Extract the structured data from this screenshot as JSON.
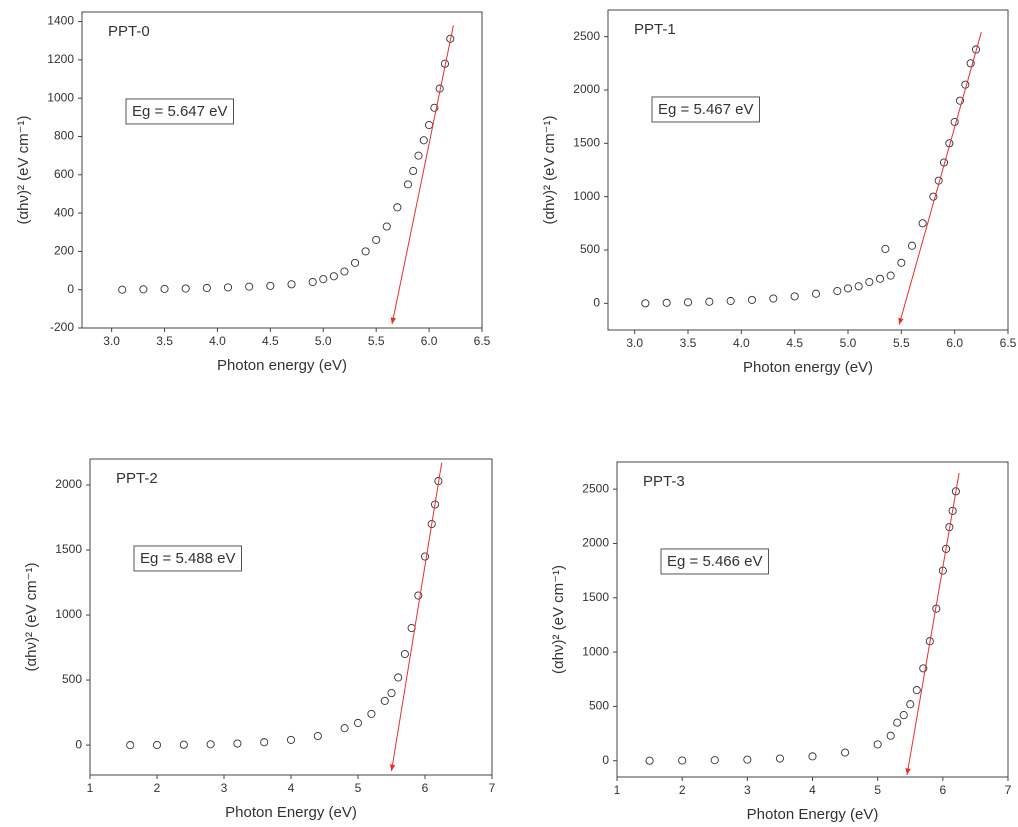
{
  "chart_data": [
    {
      "type": "scatter",
      "label": "PPT-0",
      "annotation": "Eg = 5.647 eV",
      "xlabel": "Photon energy (eV)",
      "ylabel": "(αhν)² (eV cm⁻¹)",
      "xlim": [
        2.72,
        6.5
      ],
      "ylim": [
        -200,
        1450
      ],
      "xticks": [
        {
          "value": 3,
          "label": "3.0"
        },
        3.5,
        {
          "value": 4,
          "label": "4.0"
        },
        4.5,
        {
          "value": 5,
          "label": "5.0"
        },
        5.5,
        {
          "value": 6,
          "label": "6.0"
        },
        6.5
      ],
      "yticks": [
        -200,
        0,
        200,
        400,
        600,
        800,
        1000,
        1200,
        1400
      ],
      "x": [
        3.1,
        3.3,
        3.5,
        3.7,
        3.9,
        4.1,
        4.3,
        4.5,
        4.7,
        4.9,
        5.0,
        5.1,
        5.2,
        5.3,
        5.4,
        5.5,
        5.6,
        5.7,
        5.8,
        5.85,
        5.9,
        5.95,
        6.0,
        6.05,
        6.1,
        6.15,
        6.2
      ],
      "values": [
        0,
        2,
        4,
        6,
        9,
        12,
        16,
        20,
        28,
        40,
        55,
        70,
        95,
        140,
        200,
        260,
        330,
        430,
        550,
        620,
        700,
        780,
        860,
        950,
        1050,
        1180,
        1310
      ],
      "color": "#333333",
      "fit": {
        "x": [
          5.65,
          6.23
        ],
        "y": [
          -180,
          1381
        ],
        "color": "#e8302a"
      }
    },
    {
      "type": "scatter",
      "label": "PPT-1",
      "annotation": "Eg = 5.467 eV",
      "xlabel": "Photon energy (eV)",
      "ylabel": "(αhν)² (eV cm⁻¹)",
      "xlim": [
        2.75,
        6.5
      ],
      "ylim": [
        -250,
        2750
      ],
      "xticks": [
        {
          "value": 3,
          "label": "3.0"
        },
        3.5,
        {
          "value": 4,
          "label": "4.0"
        },
        4.5,
        {
          "value": 5,
          "label": "5.0"
        },
        5.5,
        {
          "value": 6,
          "label": "6.0"
        },
        6.5
      ],
      "yticks": [
        0,
        500,
        1000,
        1500,
        2000,
        2500
      ],
      "x": [
        3.1,
        3.3,
        3.5,
        3.7,
        3.9,
        4.1,
        4.3,
        4.5,
        4.7,
        4.9,
        5.0,
        5.1,
        5.2,
        5.3,
        5.35,
        5.4,
        5.5,
        5.6,
        5.7,
        5.8,
        5.85,
        5.9,
        5.95,
        6.0,
        6.05,
        6.1,
        6.15,
        6.2
      ],
      "values": [
        0,
        5,
        10,
        15,
        22,
        32,
        45,
        65,
        90,
        115,
        140,
        160,
        200,
        230,
        510,
        260,
        380,
        540,
        750,
        1000,
        1150,
        1320,
        1500,
        1700,
        1900,
        2050,
        2250,
        2380
      ],
      "color": "#333333",
      "fit": {
        "x": [
          5.48,
          6.25
        ],
        "y": [
          -200,
          2542
        ],
        "color": "#e8302a"
      }
    },
    {
      "type": "scatter",
      "label": "PPT-2",
      "annotation": "Eg = 5.488 eV",
      "xlabel": "Photon Energy (eV)",
      "ylabel": "(αhν)² (eV cm⁻¹)",
      "xlim": [
        1,
        7
      ],
      "ylim": [
        -230,
        2200
      ],
      "xticks": [
        1,
        2,
        3,
        4,
        5,
        6,
        7
      ],
      "yticks": [
        0,
        500,
        1000,
        1500,
        2000
      ],
      "x": [
        1.6,
        2.0,
        2.4,
        2.8,
        3.2,
        3.6,
        4.0,
        4.4,
        4.8,
        5.0,
        5.2,
        5.4,
        5.5,
        5.6,
        5.7,
        5.8,
        5.9,
        6.0,
        6.1,
        6.15,
        6.2
      ],
      "values": [
        0,
        1,
        3,
        6,
        12,
        22,
        40,
        70,
        130,
        170,
        240,
        340,
        400,
        520,
        700,
        900,
        1150,
        1450,
        1700,
        1850,
        2030
      ],
      "color": "#333333",
      "fit": {
        "x": [
          5.5,
          6.25
        ],
        "y": [
          -200,
          2172
        ],
        "color": "#e8302a"
      }
    },
    {
      "type": "scatter",
      "label": "PPT-3",
      "annotation": "Eg = 5.466 eV",
      "xlabel": "Photon Energy (eV)",
      "ylabel": "(αhν)² (eV cm⁻¹)",
      "xlim": [
        1,
        7
      ],
      "ylim": [
        -150,
        2750
      ],
      "xticks": [
        1,
        2,
        3,
        4,
        5,
        6,
        7
      ],
      "yticks": [
        0,
        500,
        1000,
        1500,
        2000,
        2500
      ],
      "x": [
        1.5,
        2.0,
        2.5,
        3.0,
        3.5,
        4.0,
        4.5,
        5.0,
        5.2,
        5.3,
        5.4,
        5.5,
        5.6,
        5.7,
        5.8,
        5.9,
        6.0,
        6.05,
        6.1,
        6.15,
        6.2
      ],
      "values": [
        0,
        2,
        5,
        10,
        20,
        40,
        75,
        150,
        230,
        350,
        420,
        520,
        650,
        850,
        1100,
        1400,
        1750,
        1950,
        2150,
        2300,
        2480
      ],
      "color": "#333333",
      "fit": {
        "x": [
          5.45,
          6.25
        ],
        "y": [
          -130,
          2649
        ],
        "color": "#e8302a"
      }
    }
  ]
}
